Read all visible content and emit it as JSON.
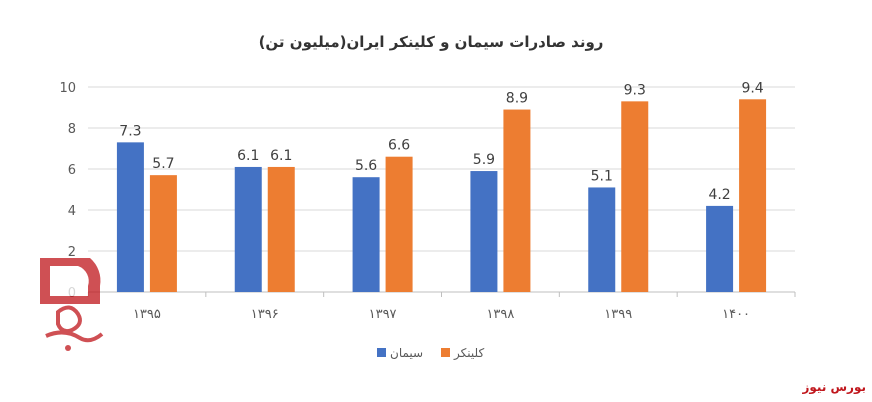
{
  "brand": {
    "name": "بورس نیوز",
    "color": "#c0161c"
  },
  "chart_data": {
    "type": "bar",
    "title": "روند صادرات سیمان و کلینکر ایران(میلیون تن)",
    "categories": [
      "۱۳۹۵",
      "۱۳۹۶",
      "۱۳۹۷",
      "۱۳۹۸",
      "۱۳۹۹",
      "۱۴۰۰"
    ],
    "series": [
      {
        "name": "سیمان",
        "color": "#4472c4",
        "values": [
          7.3,
          6.1,
          5.6,
          5.9,
          5.1,
          4.2
        ]
      },
      {
        "name": "کلینکر",
        "color": "#ed7d31",
        "values": [
          5.7,
          6.1,
          6.6,
          8.9,
          9.3,
          9.4
        ]
      }
    ],
    "y_ticks": [
      "0",
      "2",
      "4",
      "6",
      "8",
      "10"
    ],
    "ylim": [
      0,
      10
    ],
    "grid": true,
    "legend_position": "bottom",
    "data_labels": true
  }
}
